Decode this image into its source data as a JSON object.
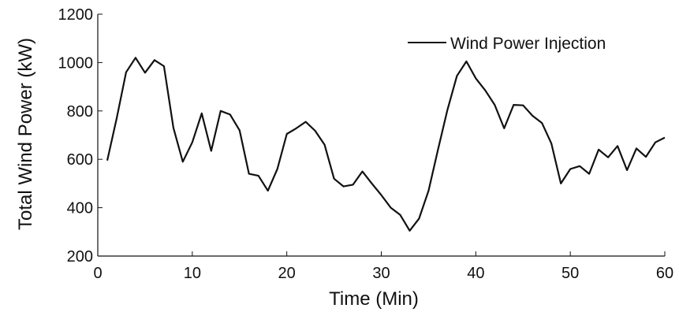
{
  "chart_data": {
    "type": "line",
    "xlabel": "Time (Min)",
    "ylabel": "Total Wind Power (kW)",
    "xlim": [
      0,
      60
    ],
    "ylim": [
      200,
      1200
    ],
    "xticks": [
      0,
      10,
      20,
      30,
      40,
      50,
      60
    ],
    "yticks": [
      200,
      400,
      600,
      800,
      1000,
      1200
    ],
    "grid": false,
    "box": "left-bottom",
    "legend": {
      "position": "top-right"
    },
    "line_color": "#111111",
    "series": [
      {
        "name": "Wind Power Injection",
        "x": [
          1,
          2,
          3,
          4,
          5,
          6,
          7,
          8,
          9,
          10,
          11,
          12,
          13,
          14,
          15,
          16,
          17,
          18,
          19,
          20,
          21,
          22,
          23,
          24,
          25,
          26,
          27,
          28,
          29,
          30,
          31,
          32,
          33,
          34,
          35,
          36,
          37,
          38,
          39,
          40,
          41,
          42,
          43,
          44,
          45,
          46,
          47,
          48,
          49,
          50,
          51,
          52,
          53,
          54,
          55,
          56,
          57,
          58,
          59,
          60
        ],
        "values": [
          595,
          770,
          960,
          1020,
          958,
          1010,
          985,
          730,
          590,
          670,
          790,
          635,
          800,
          785,
          720,
          540,
          532,
          470,
          560,
          705,
          728,
          755,
          718,
          660,
          520,
          488,
          495,
          550,
          500,
          452,
          400,
          370,
          305,
          355,
          470,
          640,
          805,
          945,
          1005,
          935,
          885,
          825,
          728,
          825,
          823,
          780,
          750,
          665,
          500,
          560,
          572,
          540,
          640,
          608,
          655,
          555,
          645,
          610,
          670,
          690
        ]
      }
    ]
  }
}
